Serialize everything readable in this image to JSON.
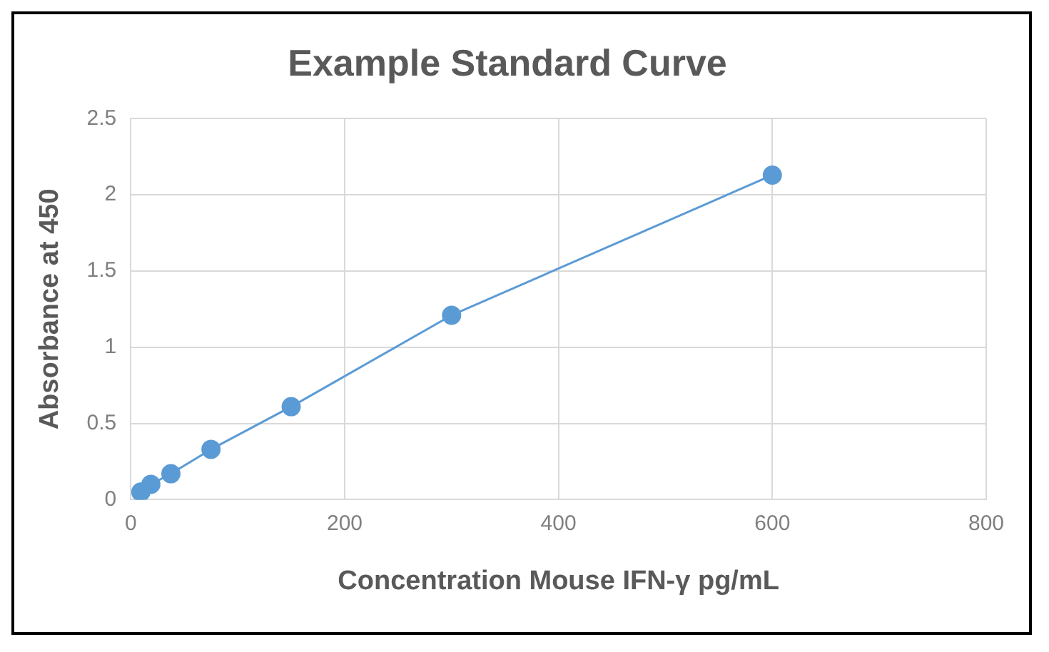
{
  "chart_data": {
    "type": "line",
    "title": "Example Standard Curve",
    "xlabel": "Concentration Mouse IFN-γ pg/mL",
    "ylabel": "Absorbance at 450",
    "series": [
      {
        "color": "#5b9bd5",
        "x": [
          9.38,
          18.75,
          37.5,
          75,
          150,
          300,
          600
        ],
        "values": [
          0.05,
          0.1,
          0.17,
          0.33,
          0.61,
          1.21,
          2.13
        ]
      }
    ],
    "xlim": [
      0,
      800
    ],
    "xticks": [
      0,
      200,
      400,
      600,
      800
    ],
    "ylim": [
      0,
      2.5
    ],
    "yticks": [
      0,
      0.5,
      1,
      1.5,
      2,
      2.5
    ],
    "grid": true,
    "legend": false,
    "marker": "circle",
    "line_style": "solid"
  }
}
